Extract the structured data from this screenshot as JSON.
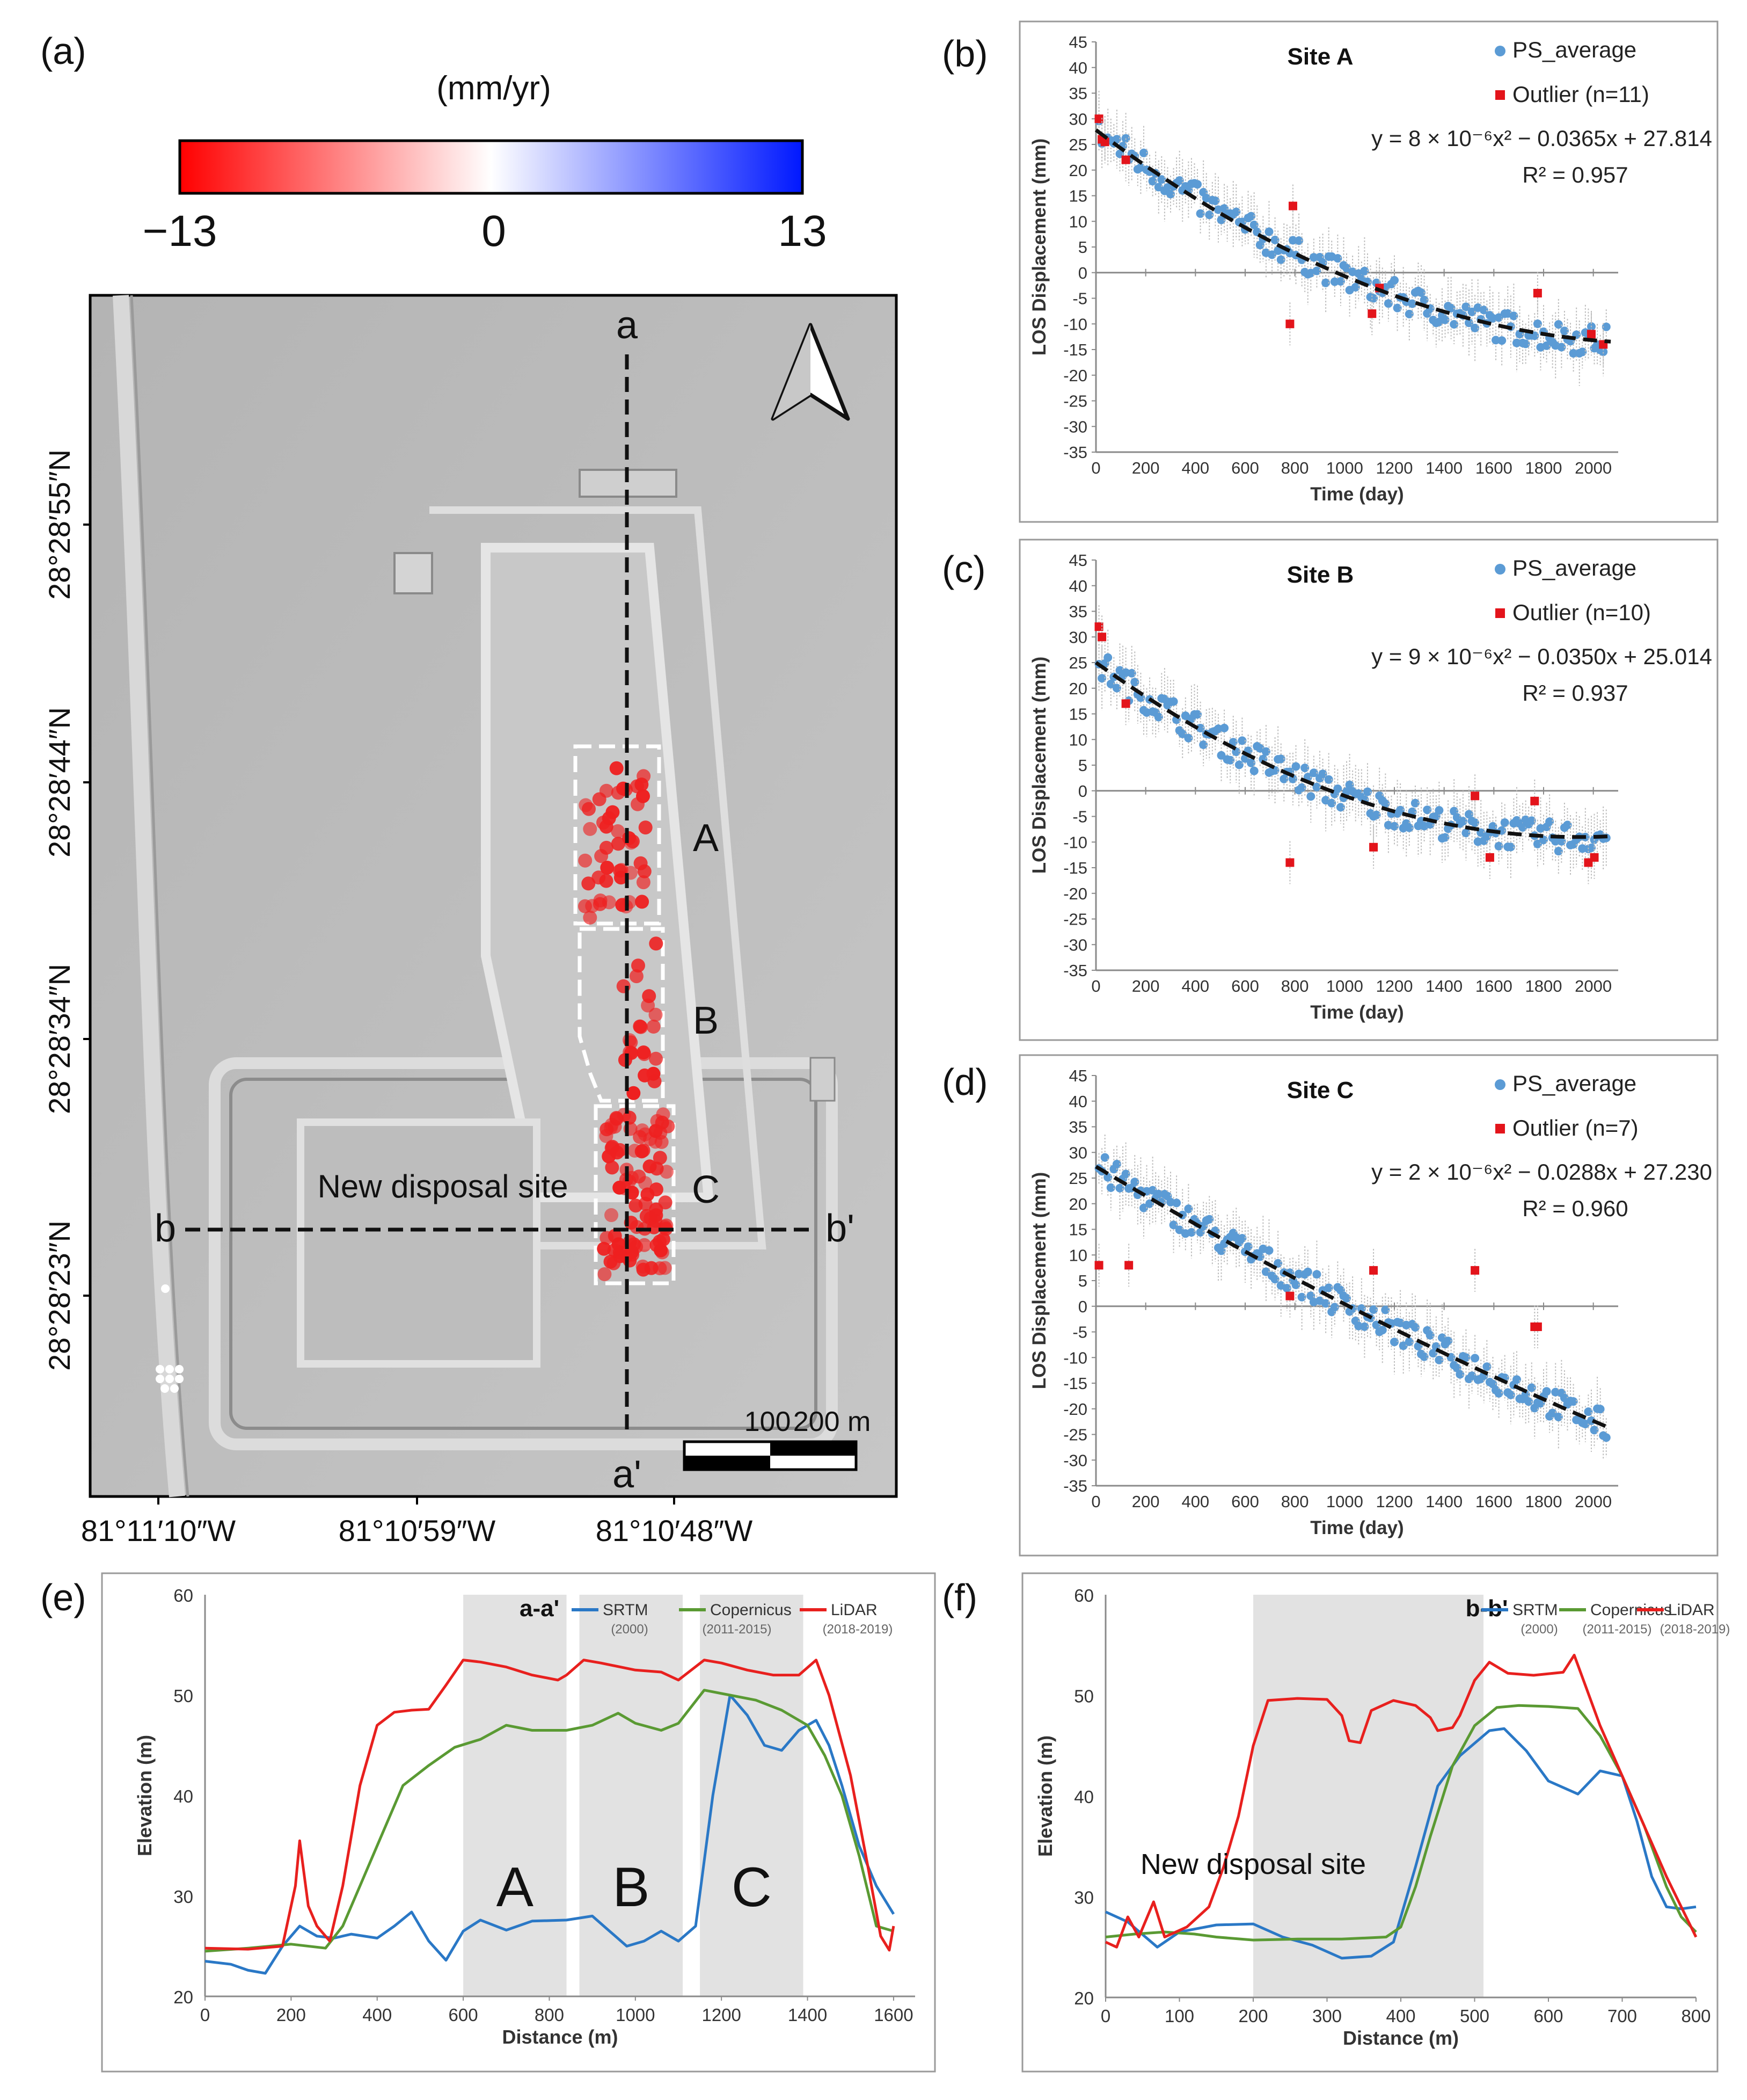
{
  "panels": {
    "a": "(a)",
    "b": "(b)",
    "c": "(c)",
    "d": "(d)",
    "e": "(e)",
    "f": "(f)"
  },
  "colorbar": {
    "unit": "(mm/yr)",
    "min_label": "−13",
    "mid_label": "0",
    "max_label": "13",
    "colors": {
      "low": "#ff0000",
      "mid": "#ffffff",
      "high": "#0018ff"
    }
  },
  "map": {
    "lat_labels": [
      "28°28′55″N",
      "28°28′44″N",
      "28°28′34″N",
      "28°28′23″N"
    ],
    "lon_labels": [
      "81°11′10″W",
      "81°10′59″W",
      "81°10′48″W"
    ],
    "profile_a": "a",
    "profile_a_end": "a'",
    "profile_b": "b",
    "profile_b_end": "b'",
    "site_labels": [
      "A",
      "B",
      "C"
    ],
    "new_site_label": "New disposal site",
    "scale_labels": [
      "100",
      "200 m"
    ],
    "north_arrow": "north-arrow-icon"
  },
  "chart_data": [
    {
      "id": "b",
      "type": "scatter",
      "title": "Site A",
      "xlabel": "Time (day)",
      "ylabel": "LOS Displacement (mm)",
      "xlim": [
        0,
        2100
      ],
      "ylim": [
        -35,
        45
      ],
      "xticks": [
        0,
        200,
        400,
        600,
        800,
        1000,
        1200,
        1400,
        1600,
        1800,
        2000
      ],
      "yticks": [
        45,
        40,
        35,
        30,
        25,
        20,
        15,
        10,
        5,
        0,
        -5,
        -10,
        -15,
        -20,
        -25,
        -30,
        -35
      ],
      "legend": [
        "PS_average",
        "Outlier (n=11)"
      ],
      "equation": "y = 8 × 10⁻⁶x² − 0.0365x + 27.814",
      "r2": "R² = 0.957",
      "fit": {
        "a": 8e-06,
        "b": -0.0365,
        "c": 27.814
      },
      "outliers": [
        [
          12,
          30
        ],
        [
          24,
          26
        ],
        [
          36,
          25.5
        ],
        [
          120,
          22
        ],
        [
          792,
          13
        ],
        [
          780,
          -10
        ],
        [
          1110,
          -8
        ],
        [
          1140,
          -3
        ],
        [
          1776,
          -4
        ],
        [
          2040,
          -14
        ],
        [
          1992,
          -12
        ]
      ]
    },
    {
      "id": "c",
      "type": "scatter",
      "title": "Site B",
      "xlabel": "Time (day)",
      "ylabel": "LOS Displacement (mm)",
      "xlim": [
        0,
        2100
      ],
      "ylim": [
        -35,
        45
      ],
      "xticks": [
        0,
        200,
        400,
        600,
        800,
        1000,
        1200,
        1400,
        1600,
        1800,
        2000
      ],
      "yticks": [
        45,
        40,
        35,
        30,
        25,
        20,
        15,
        10,
        5,
        0,
        -5,
        -10,
        -15,
        -20,
        -25,
        -30,
        -35
      ],
      "legend": [
        "PS_average",
        "Outlier (n=10)"
      ],
      "equation": "y = 9 × 10⁻⁶x² − 0.0350x + 25.014",
      "r2": "R² = 0.937",
      "fit": {
        "a": 9e-06,
        "b": -0.035,
        "c": 25.014
      },
      "outliers": [
        [
          12,
          32
        ],
        [
          24,
          30
        ],
        [
          120,
          17
        ],
        [
          780,
          -14
        ],
        [
          1116,
          -11
        ],
        [
          1524,
          -1
        ],
        [
          1584,
          -13
        ],
        [
          1764,
          -2
        ],
        [
          1980,
          -14
        ],
        [
          2004,
          -13
        ]
      ]
    },
    {
      "id": "d",
      "type": "scatter",
      "title": "Site C",
      "xlabel": "Time (day)",
      "ylabel": "LOS Displacement (mm)",
      "xlim": [
        0,
        2100
      ],
      "ylim": [
        -35,
        45
      ],
      "xticks": [
        0,
        200,
        400,
        600,
        800,
        1000,
        1200,
        1400,
        1600,
        1800,
        2000
      ],
      "yticks": [
        45,
        40,
        35,
        30,
        25,
        20,
        15,
        10,
        5,
        0,
        -5,
        -10,
        -15,
        -20,
        -25,
        -30,
        -35
      ],
      "legend": [
        "PS_average",
        "Outlier (n=7)"
      ],
      "equation": "y = 2 × 10⁻⁶x² − 0.0288x + 27.230",
      "r2": "R² = 0.960",
      "fit": {
        "a": 2e-06,
        "b": -0.0288,
        "c": 27.23
      },
      "outliers": [
        [
          12,
          8
        ],
        [
          132,
          8
        ],
        [
          780,
          2
        ],
        [
          1116,
          7
        ],
        [
          1524,
          7
        ],
        [
          1764,
          -4
        ],
        [
          1776,
          -4
        ]
      ]
    },
    {
      "id": "e",
      "type": "line",
      "title": "a-a'",
      "xlabel": "Distance (m)",
      "ylabel": "Elevation (m)",
      "xlim": [
        0,
        1650
      ],
      "ylim": [
        20,
        60
      ],
      "xticks": [
        0,
        200,
        400,
        600,
        800,
        1000,
        1200,
        1400,
        1600
      ],
      "yticks": [
        20,
        30,
        40,
        50,
        60
      ],
      "shaded": [
        [
          600,
          840
        ],
        [
          870,
          1110
        ],
        [
          1150,
          1390
        ]
      ],
      "shaded_labels": [
        "A",
        "B",
        "C"
      ],
      "series": [
        {
          "name": "SRTM",
          "sub": "(2000)",
          "color": "#2a78c6",
          "points": [
            [
              0,
              23.5
            ],
            [
              60,
              23.2
            ],
            [
              100,
              22.6
            ],
            [
              140,
              22.3
            ],
            [
              180,
              25
            ],
            [
              220,
              27
            ],
            [
              260,
              26
            ],
            [
              300,
              25.8
            ],
            [
              340,
              26.2
            ],
            [
              400,
              25.8
            ],
            [
              440,
              27
            ],
            [
              480,
              28.4
            ],
            [
              520,
              25.5
            ],
            [
              560,
              23.6
            ],
            [
              600,
              26.5
            ],
            [
              640,
              27.6
            ],
            [
              700,
              26.6
            ],
            [
              760,
              27.5
            ],
            [
              840,
              27.6
            ],
            [
              900,
              28
            ],
            [
              940,
              26.5
            ],
            [
              980,
              25
            ],
            [
              1020,
              25.5
            ],
            [
              1060,
              26.5
            ],
            [
              1100,
              25.5
            ],
            [
              1140,
              27
            ],
            [
              1180,
              40
            ],
            [
              1220,
              50
            ],
            [
              1260,
              48
            ],
            [
              1300,
              45
            ],
            [
              1340,
              44.5
            ],
            [
              1380,
              46.5
            ],
            [
              1420,
              47.5
            ],
            [
              1450,
              45
            ],
            [
              1480,
              41
            ],
            [
              1520,
              35
            ],
            [
              1560,
              31
            ],
            [
              1600,
              28.2
            ]
          ]
        },
        {
          "name": "Copernicus",
          "sub": "(2011-2015)",
          "color": "#5a9a33",
          "points": [
            [
              0,
              24.5
            ],
            [
              100,
              24.8
            ],
            [
              200,
              25.2
            ],
            [
              280,
              24.8
            ],
            [
              320,
              27
            ],
            [
              360,
              31
            ],
            [
              400,
              35
            ],
            [
              460,
              41
            ],
            [
              520,
              43
            ],
            [
              580,
              44.8
            ],
            [
              640,
              45.6
            ],
            [
              700,
              47
            ],
            [
              760,
              46.5
            ],
            [
              840,
              46.5
            ],
            [
              900,
              47
            ],
            [
              960,
              48.2
            ],
            [
              1000,
              47.2
            ],
            [
              1060,
              46.5
            ],
            [
              1100,
              47.2
            ],
            [
              1160,
              50.5
            ],
            [
              1220,
              50
            ],
            [
              1280,
              49.5
            ],
            [
              1340,
              48.5
            ],
            [
              1400,
              47
            ],
            [
              1440,
              44
            ],
            [
              1480,
              40
            ],
            [
              1520,
              34
            ],
            [
              1560,
              27
            ],
            [
              1600,
              26.5
            ]
          ]
        },
        {
          "name": "LiDAR",
          "sub": "(2018-2019)",
          "color": "#e8201e",
          "points": [
            [
              0,
              24.8
            ],
            [
              100,
              24.7
            ],
            [
              180,
              25
            ],
            [
              210,
              31
            ],
            [
              220,
              35.5
            ],
            [
              240,
              29
            ],
            [
              260,
              27
            ],
            [
              290,
              25.5
            ],
            [
              320,
              31
            ],
            [
              360,
              41
            ],
            [
              400,
              47
            ],
            [
              440,
              48.3
            ],
            [
              480,
              48.5
            ],
            [
              520,
              48.6
            ],
            [
              560,
              51
            ],
            [
              600,
              53.5
            ],
            [
              640,
              53.3
            ],
            [
              700,
              52.8
            ],
            [
              760,
              52
            ],
            [
              820,
              51.5
            ],
            [
              840,
              52
            ],
            [
              880,
              53.5
            ],
            [
              920,
              53.2
            ],
            [
              1000,
              52.5
            ],
            [
              1060,
              52.3
            ],
            [
              1100,
              51.5
            ],
            [
              1160,
              53.5
            ],
            [
              1200,
              53.2
            ],
            [
              1260,
              52.5
            ],
            [
              1320,
              52
            ],
            [
              1380,
              52
            ],
            [
              1420,
              53.5
            ],
            [
              1450,
              50
            ],
            [
              1500,
              42
            ],
            [
              1540,
              33
            ],
            [
              1570,
              26
            ],
            [
              1590,
              24.6
            ],
            [
              1600,
              27
            ]
          ]
        }
      ]
    },
    {
      "id": "f",
      "type": "line",
      "title": "b-b'",
      "xlabel": "Distance (m)",
      "ylabel": "Elevation (m)",
      "xlim": [
        0,
        800
      ],
      "ylim": [
        20,
        60
      ],
      "xticks": [
        0,
        100,
        200,
        300,
        400,
        500,
        600,
        700,
        800
      ],
      "yticks": [
        20,
        30,
        40,
        50,
        60
      ],
      "shaded": [
        [
          200,
          512
        ]
      ],
      "shaded_labels": [
        "New disposal site"
      ],
      "series": [
        {
          "name": "SRTM",
          "sub": "(2000)",
          "color": "#2a78c6",
          "points": [
            [
              0,
              28.5
            ],
            [
              30,
              27.5
            ],
            [
              70,
              25
            ],
            [
              100,
              26.5
            ],
            [
              150,
              27.2
            ],
            [
              200,
              27.3
            ],
            [
              240,
              26
            ],
            [
              280,
              25.2
            ],
            [
              320,
              23.9
            ],
            [
              360,
              24.1
            ],
            [
              390,
              25.5
            ],
            [
              420,
              33
            ],
            [
              450,
              41
            ],
            [
              480,
              44
            ],
            [
              520,
              46.5
            ],
            [
              540,
              46.7
            ],
            [
              570,
              44.5
            ],
            [
              600,
              41.5
            ],
            [
              640,
              40.2
            ],
            [
              670,
              42.5
            ],
            [
              700,
              42
            ],
            [
              720,
              37.5
            ],
            [
              740,
              32
            ],
            [
              760,
              29
            ],
            [
              780,
              28.8
            ],
            [
              800,
              29
            ]
          ]
        },
        {
          "name": "Copernicus",
          "sub": "(2011-2015)",
          "color": "#5a9a33",
          "points": [
            [
              0,
              26
            ],
            [
              40,
              26.3
            ],
            [
              80,
              26.5
            ],
            [
              120,
              26.3
            ],
            [
              150,
              26
            ],
            [
              200,
              25.7
            ],
            [
              260,
              25.8
            ],
            [
              320,
              25.8
            ],
            [
              380,
              26
            ],
            [
              400,
              27
            ],
            [
              420,
              31
            ],
            [
              440,
              36
            ],
            [
              470,
              43
            ],
            [
              500,
              47
            ],
            [
              530,
              48.8
            ],
            [
              560,
              49
            ],
            [
              600,
              48.9
            ],
            [
              640,
              48.7
            ],
            [
              670,
              46
            ],
            [
              700,
              42
            ],
            [
              730,
              37
            ],
            [
              760,
              31
            ],
            [
              780,
              28
            ],
            [
              800,
              26.5
            ]
          ]
        },
        {
          "name": "LiDAR",
          "sub": "(2018-2019)",
          "color": "#e8201e",
          "points": [
            [
              0,
              25.5
            ],
            [
              15,
              25
            ],
            [
              30,
              28
            ],
            [
              45,
              26
            ],
            [
              65,
              29.5
            ],
            [
              80,
              26
            ],
            [
              110,
              27
            ],
            [
              140,
              29
            ],
            [
              160,
              33
            ],
            [
              180,
              38
            ],
            [
              200,
              45
            ],
            [
              220,
              49.5
            ],
            [
              260,
              49.7
            ],
            [
              300,
              49.6
            ],
            [
              320,
              48
            ],
            [
              330,
              45.5
            ],
            [
              345,
              45.3
            ],
            [
              360,
              48.5
            ],
            [
              390,
              49.5
            ],
            [
              420,
              49
            ],
            [
              440,
              47.8
            ],
            [
              450,
              46.5
            ],
            [
              470,
              46.8
            ],
            [
              480,
              48
            ],
            [
              500,
              51.5
            ],
            [
              520,
              53.3
            ],
            [
              545,
              52.2
            ],
            [
              580,
              52
            ],
            [
              620,
              52.3
            ],
            [
              635,
              54
            ],
            [
              650,
              51
            ],
            [
              670,
              47
            ],
            [
              700,
              42
            ],
            [
              730,
              37
            ],
            [
              760,
              32
            ],
            [
              780,
              29
            ],
            [
              800,
              26
            ]
          ]
        }
      ]
    }
  ]
}
